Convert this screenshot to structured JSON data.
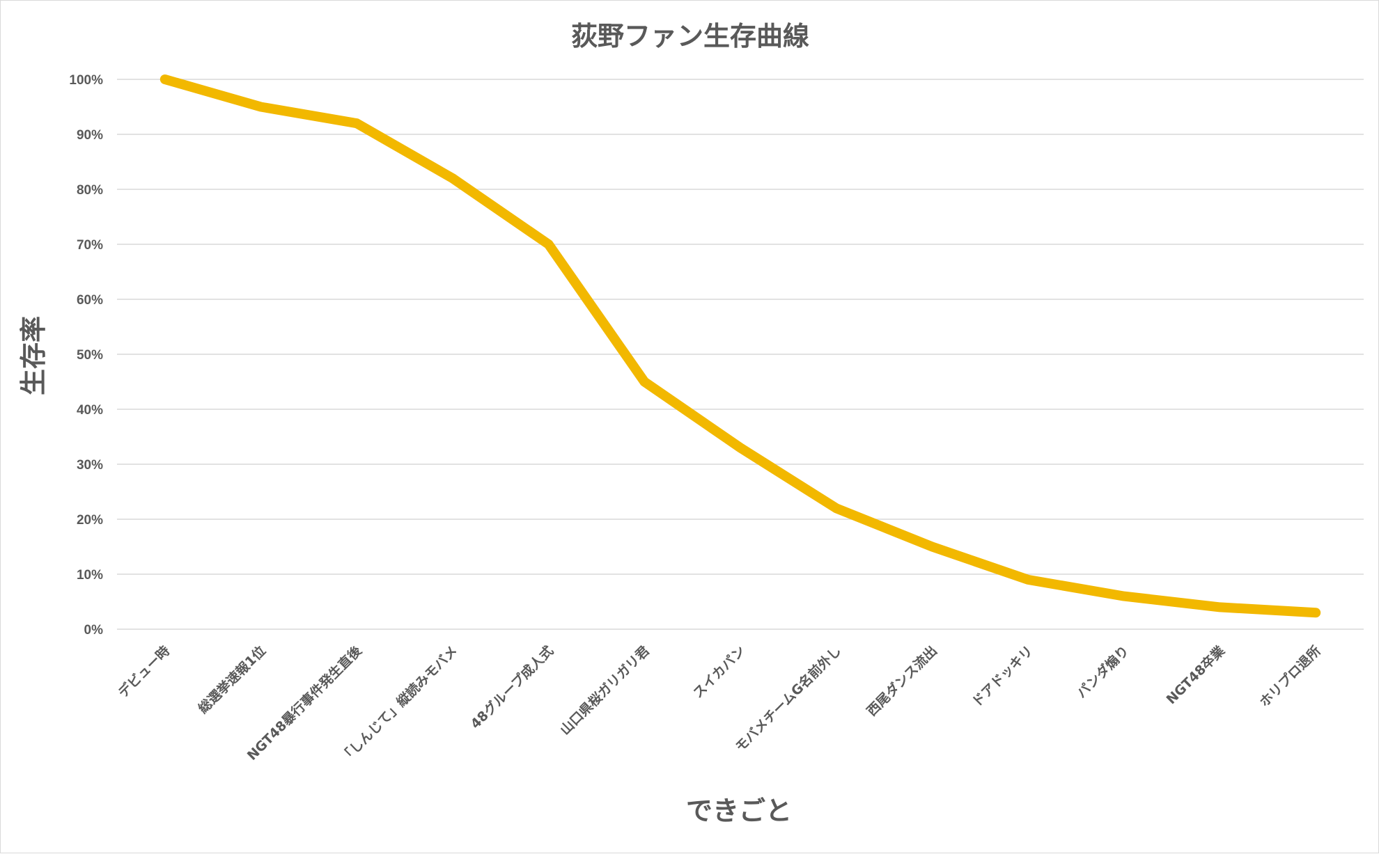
{
  "chart_data": {
    "type": "line",
    "title": "荻野ファン生存曲線",
    "xlabel": "できごと",
    "ylabel": "生存率",
    "ylim": [
      0,
      100
    ],
    "y_ticks": [
      "0%",
      "10%",
      "20%",
      "30%",
      "40%",
      "50%",
      "60%",
      "70%",
      "80%",
      "90%",
      "100%"
    ],
    "grid": true,
    "legend": "none",
    "categories": [
      "デビュー時",
      "総選挙速報1位",
      "NGT48暴行事件発生直後",
      "「しんじて」縦読みモバメ",
      "48グループ成人式",
      "山口県桜ガリガリ君",
      "スイカパン",
      "モバメチームG名前外し",
      "西尾ダンス流出",
      "ドアドッキリ",
      "パンダ煽り",
      "NGT48卒業",
      "ホリプロ退所"
    ],
    "series": [
      {
        "values": [
          100,
          95,
          92,
          82,
          70,
          45,
          33,
          22,
          15,
          9,
          6,
          4,
          3
        ]
      }
    ],
    "colors": {
      "line": "#f2b800",
      "grid": "#d9d9d9",
      "text": "#595959"
    }
  }
}
